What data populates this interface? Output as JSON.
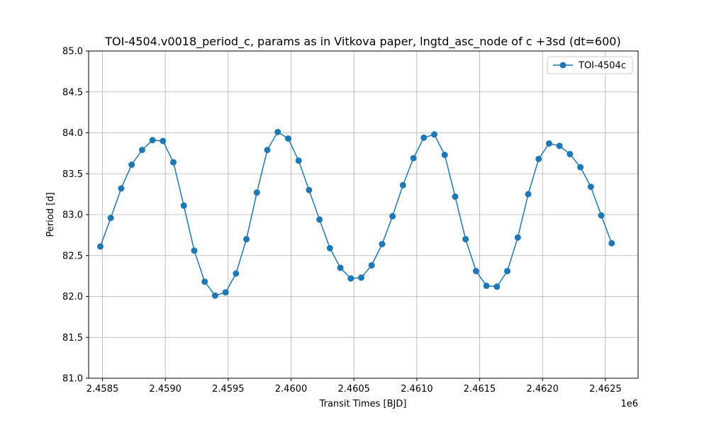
{
  "chart_data": {
    "type": "line",
    "title": "TOI-4504.v0018_period_c, params as in Vitkova paper, lngtd_asc_node of c +3sd (dt=600)",
    "xlabel": "Transit Times [BJD]",
    "ylabel": "Period [d]",
    "x_offset_label": "1e6",
    "xlim": [
      2458390,
      2462760
    ],
    "ylim": [
      81.0,
      85.0
    ],
    "x_ticks": [
      2458500,
      2459000,
      2459500,
      2460000,
      2460500,
      2461000,
      2461500,
      2462000,
      2462500
    ],
    "x_tick_labels": [
      "2.4585",
      "2.4590",
      "2.4595",
      "2.4600",
      "2.4605",
      "2.4610",
      "2.4615",
      "2.4620",
      "2.4625"
    ],
    "y_ticks": [
      81.0,
      81.5,
      82.0,
      82.5,
      83.0,
      83.5,
      84.0,
      84.5,
      85.0
    ],
    "y_tick_labels": [
      "81.0",
      "81.5",
      "82.0",
      "82.5",
      "83.0",
      "83.5",
      "84.0",
      "84.5",
      "85.0"
    ],
    "grid": true,
    "legend": "top-right",
    "series": [
      {
        "name": "TOI-4504c",
        "color": "#1f77b4",
        "marker": "circle",
        "x": [
          2458483,
          2458566,
          2458649,
          2458732,
          2458815,
          2458898,
          2458981,
          2459064,
          2459147,
          2459230,
          2459313,
          2459396,
          2459479,
          2459562,
          2459645,
          2459728,
          2459811,
          2459894,
          2459977,
          2460060,
          2460143,
          2460226,
          2460309,
          2460392,
          2460475,
          2460558,
          2460641,
          2460724,
          2460807,
          2460890,
          2460973,
          2461056,
          2461139,
          2461222,
          2461305,
          2461388,
          2461471,
          2461554,
          2461637,
          2461720,
          2461803,
          2461886,
          2461969,
          2462052,
          2462135,
          2462218,
          2462301,
          2462384,
          2462467,
          2462550
        ],
        "y": [
          82.61,
          82.96,
          83.32,
          83.61,
          83.79,
          83.91,
          83.9,
          83.64,
          83.11,
          82.56,
          82.18,
          82.01,
          82.05,
          82.28,
          82.7,
          83.27,
          83.79,
          84.01,
          83.93,
          83.66,
          83.3,
          82.94,
          82.59,
          82.35,
          82.22,
          82.23,
          82.38,
          82.64,
          82.98,
          83.36,
          83.69,
          83.94,
          83.98,
          83.73,
          83.22,
          82.7,
          82.31,
          82.13,
          82.12,
          82.31,
          82.72,
          83.25,
          83.68,
          83.87,
          83.84,
          83.74,
          83.58,
          83.34,
          82.99,
          82.65
        ]
      }
    ]
  }
}
